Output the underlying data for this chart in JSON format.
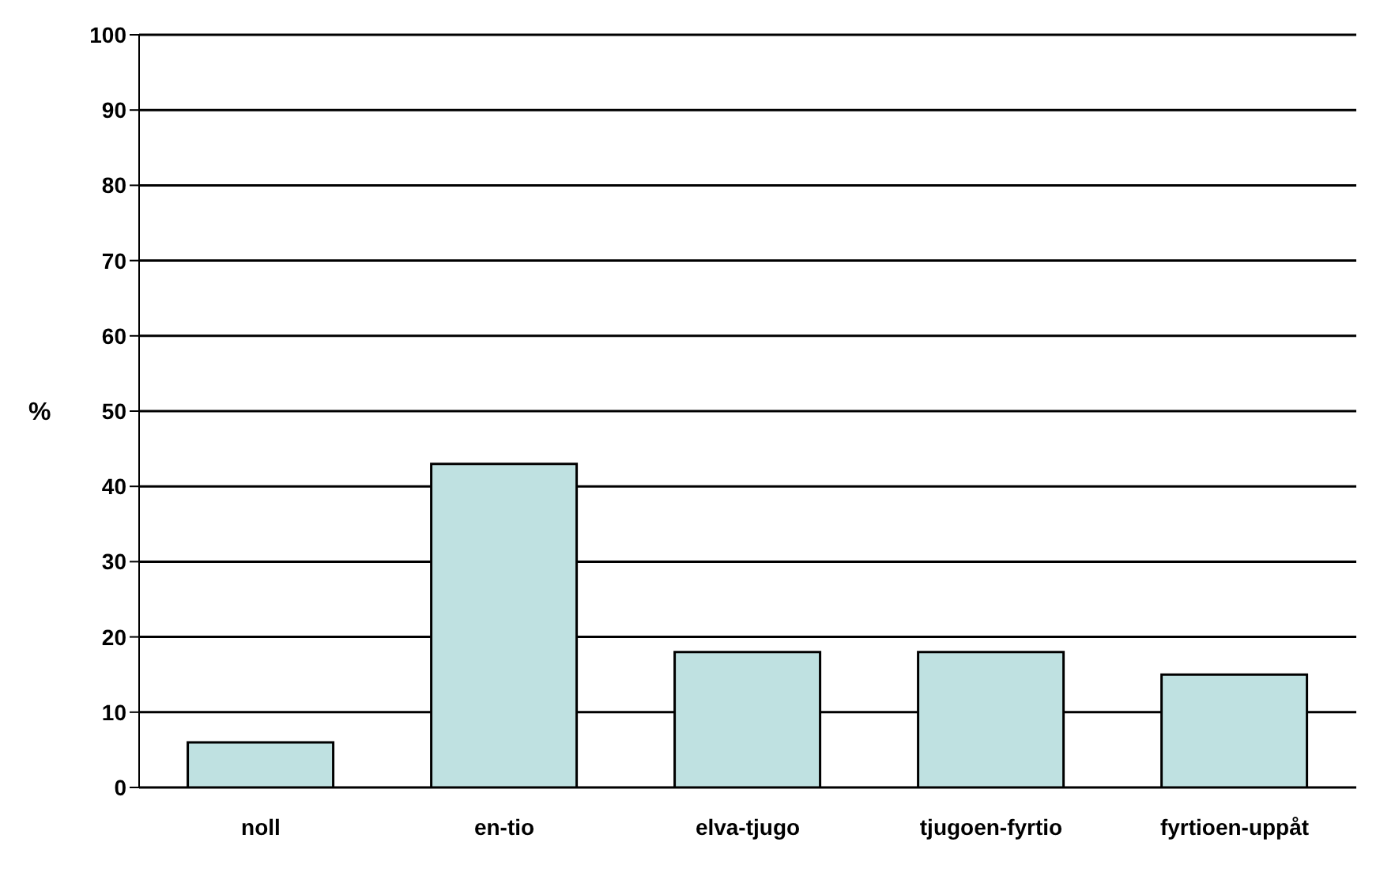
{
  "chart_data": {
    "type": "bar",
    "ylabel": "%",
    "categories": [
      "noll",
      "en-tio",
      "elva-tjugo",
      "tjugoen-fyrtio",
      "fyrtioen-uppåt"
    ],
    "values": [
      6,
      43,
      18,
      18,
      15
    ],
    "color": "#bfe1e1",
    "ylim": [
      0,
      100
    ],
    "yticks": [
      0,
      10,
      20,
      30,
      40,
      50,
      60,
      70,
      80,
      90,
      100
    ],
    "grid": "y",
    "legend": false
  }
}
